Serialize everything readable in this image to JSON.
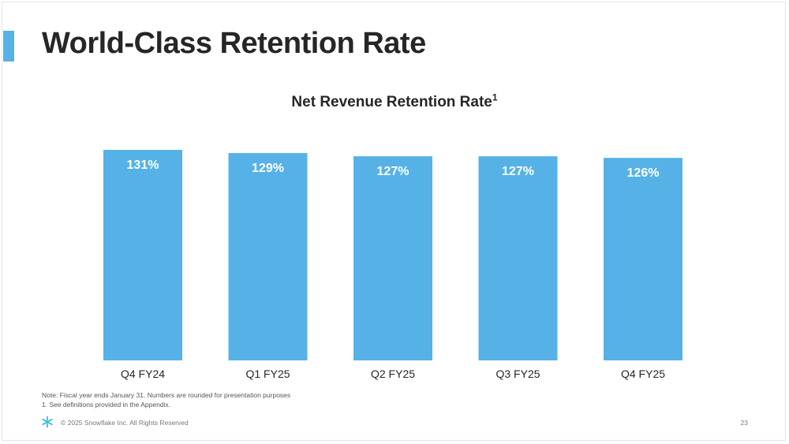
{
  "slide": {
    "title": "World-Class Retention Rate",
    "accent_color": "#56b2e6"
  },
  "chart_data": {
    "type": "bar",
    "title": "Net Revenue Retention Rate",
    "title_footnote_marker": "1",
    "categories": [
      "Q4 FY24",
      "Q1 FY25",
      "Q2 FY25",
      "Q3 FY25",
      "Q4 FY25"
    ],
    "values": [
      131,
      129,
      127,
      127,
      126
    ],
    "data_labels": [
      "131%",
      "129%",
      "127%",
      "127%",
      "126%"
    ],
    "bar_color": "#56b2e6",
    "label_color": "#ffffff",
    "grid": false,
    "legend": "none"
  },
  "notes": {
    "line1": "Note: Fiscal year ends January 31. Numbers are rounded for presentation purposes",
    "line2": "1.  See definitions provided in the Appendix."
  },
  "footer": {
    "logo_icon": "snowflake-logo-icon",
    "copyright": "© 2025 Snowflake Inc. All Rights Reserved",
    "page_number": "23"
  }
}
